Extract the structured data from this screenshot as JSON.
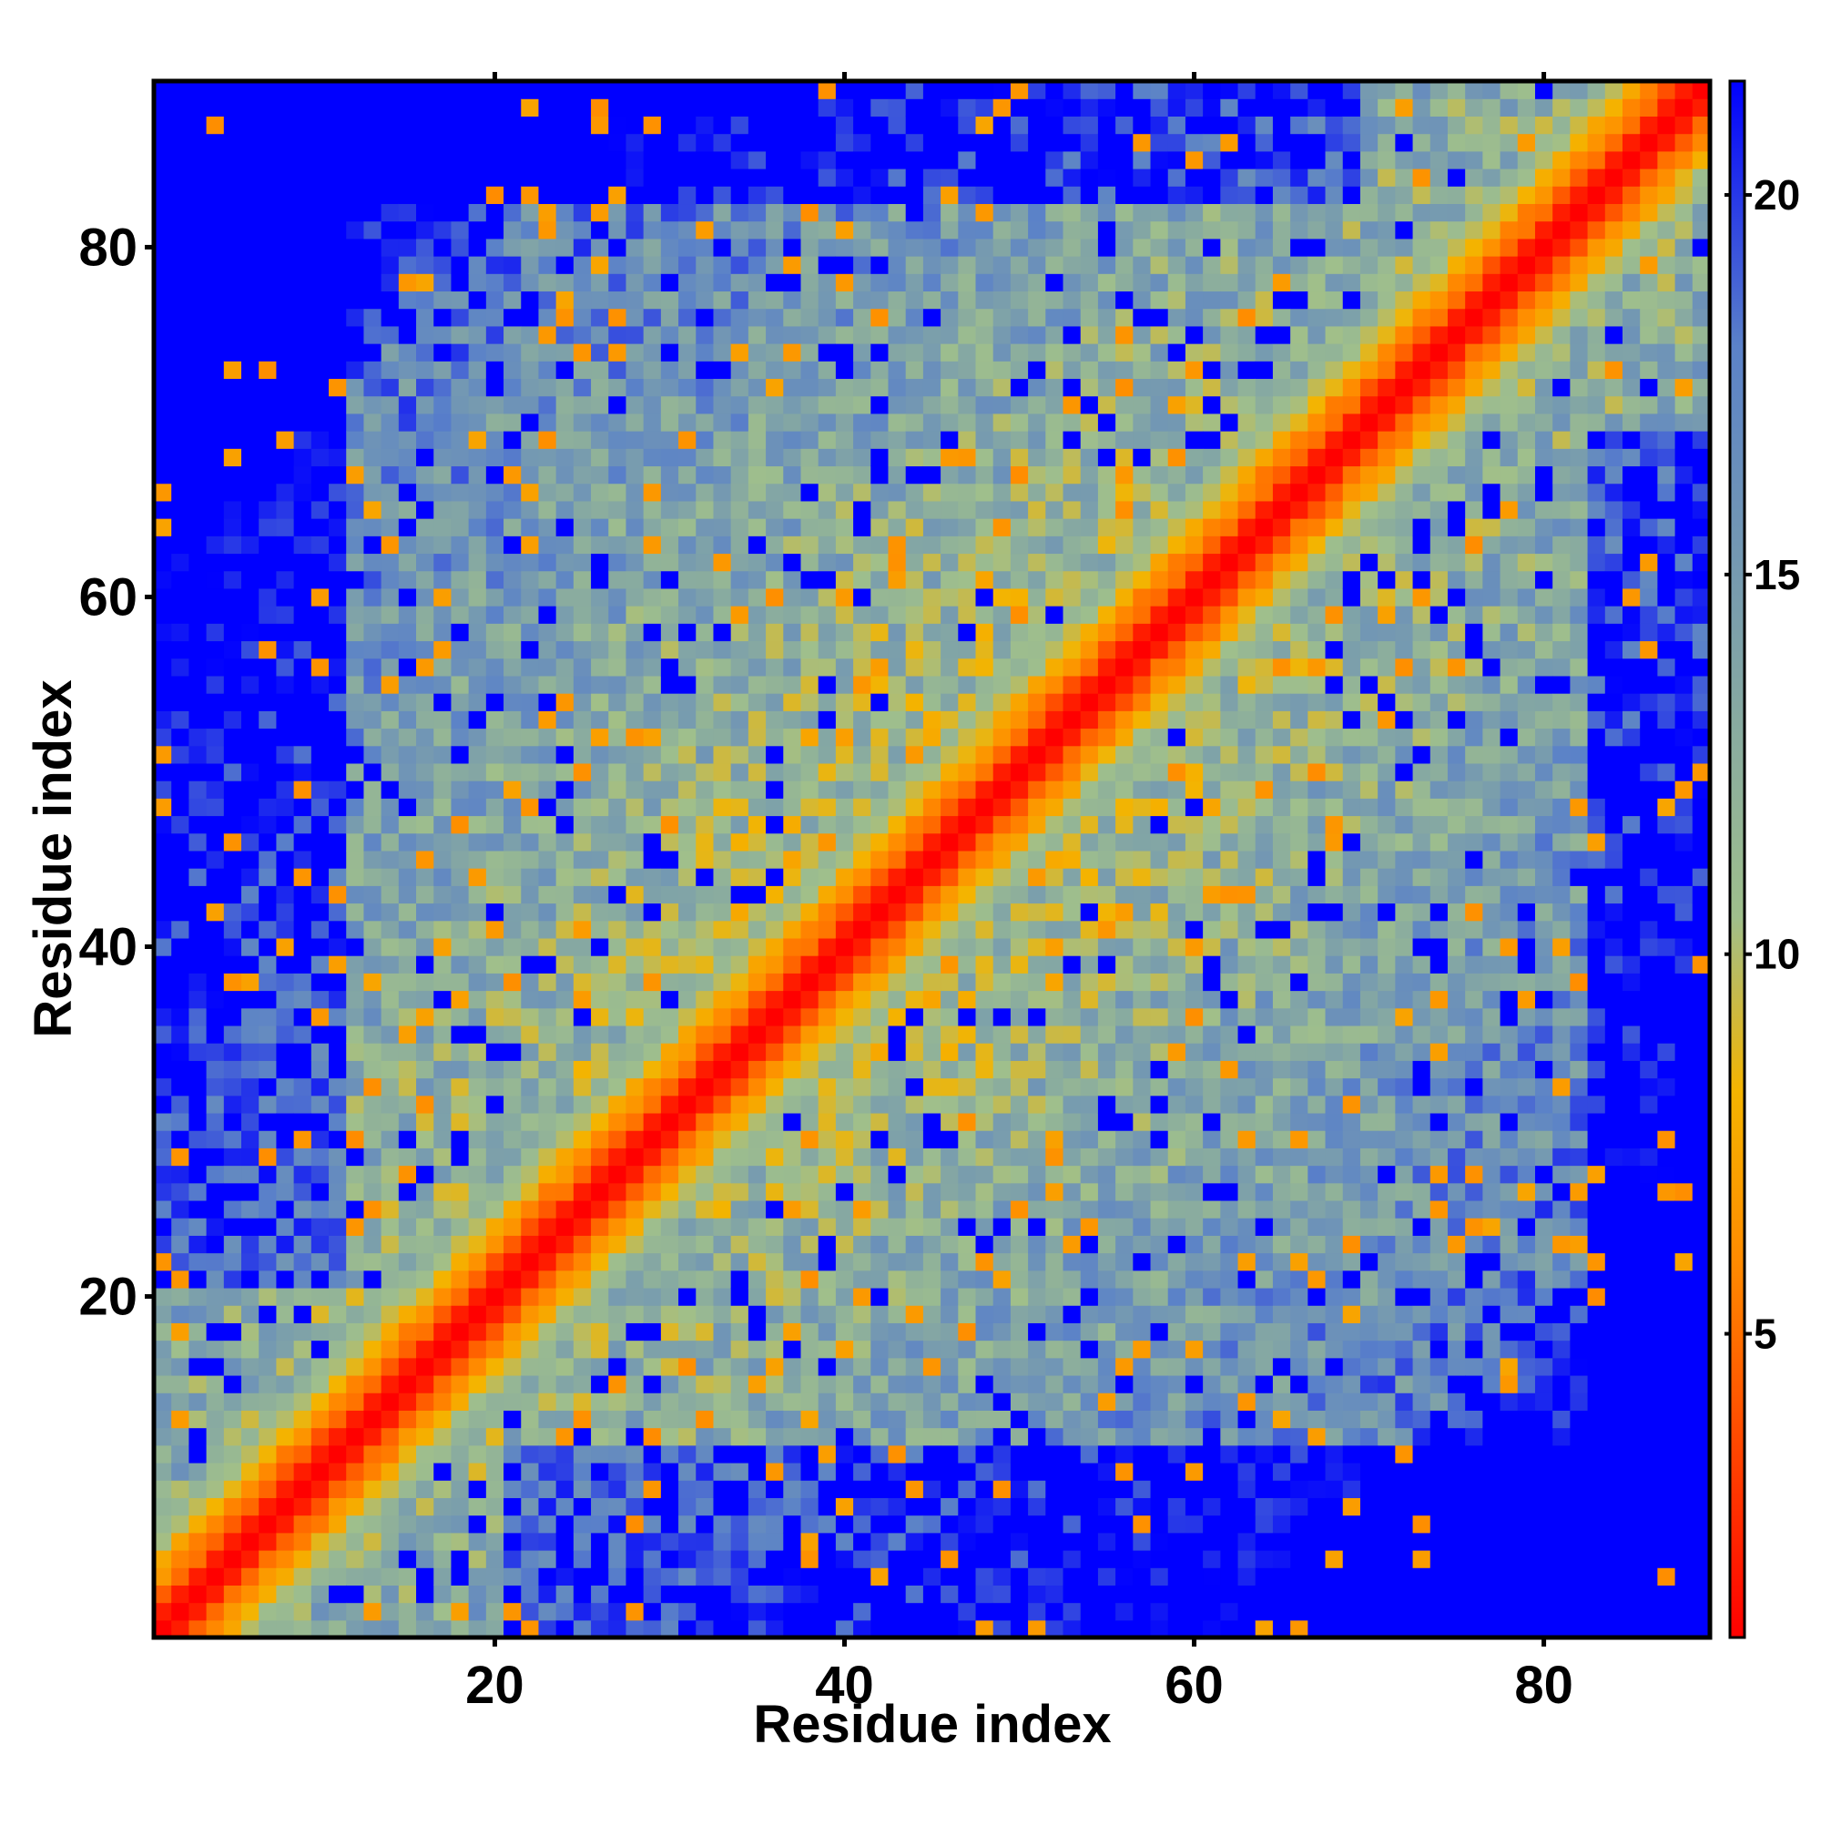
{
  "chart_data": {
    "type": "heatmap",
    "title": "",
    "xlabel": "Residue index",
    "ylabel": "Residue index",
    "n_residues": 89,
    "xlim": [
      1,
      89
    ],
    "ylim": [
      1,
      89
    ],
    "xticks": [
      20,
      40,
      60,
      80
    ],
    "yticks": [
      20,
      40,
      60,
      80
    ],
    "colorbar": {
      "ticks": [
        5,
        10,
        15,
        20
      ],
      "range": [
        1,
        21.5
      ],
      "colors": [
        "#ff0000",
        "#ff8c00",
        "#f4b400",
        "#9fbf8c",
        "#5b82c8",
        "#0000ff"
      ],
      "color_stops": [
        1,
        6,
        8.2,
        10.5,
        18,
        21.5
      ]
    },
    "value_model": {
      "diagonal_band": [
        [
          0,
          1.0
        ],
        [
          1,
          2.0
        ],
        [
          2,
          4.5
        ],
        [
          3,
          6.0
        ],
        [
          4,
          8.0
        ],
        [
          5,
          10.0
        ],
        [
          6,
          11.5
        ]
      ],
      "off_diagonal": "contact distance map (symmetric); values above 21 shown as saturated blue",
      "missing_value_color": "#0000ff"
    }
  }
}
